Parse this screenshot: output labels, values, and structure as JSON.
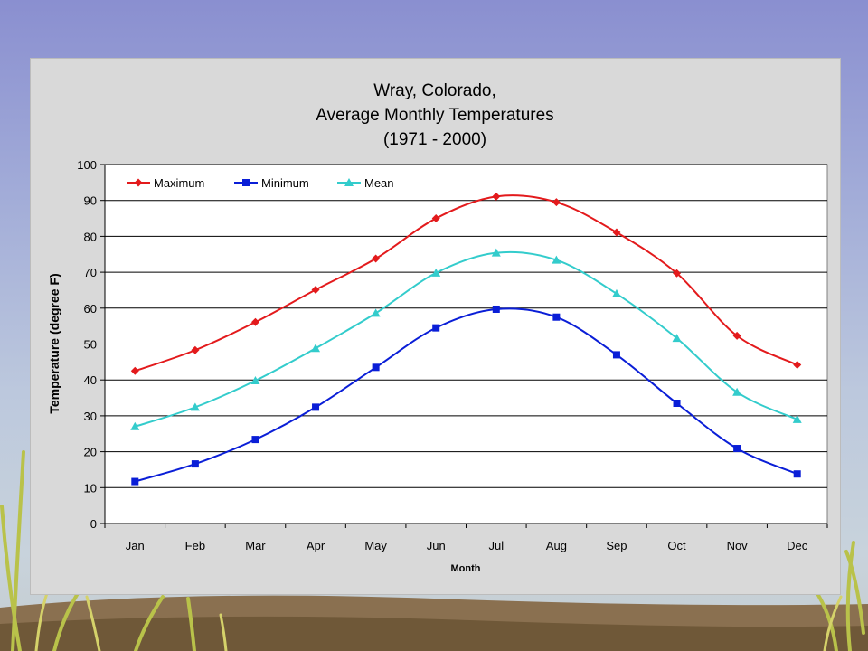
{
  "chart_data": {
    "type": "line",
    "title_lines": [
      "Wray, Colorado,",
      "Average Monthly Temperatures",
      "(1971 - 2000)"
    ],
    "xlabel": "Month",
    "ylabel": "Temperature (degree F)",
    "ylim": [
      0,
      100
    ],
    "yticks": [
      0,
      10,
      20,
      30,
      40,
      50,
      60,
      70,
      80,
      90,
      100
    ],
    "grid": true,
    "legend_position": "top-left",
    "categories": [
      "Jan",
      "Feb",
      "Mar",
      "Apr",
      "May",
      "Jun",
      "Jul",
      "Aug",
      "Sep",
      "Oct",
      "Nov",
      "Dec"
    ],
    "series": [
      {
        "name": "Maximum",
        "color": "#e31a1c",
        "marker": "diamond",
        "values": [
          42.5,
          48.3,
          56.1,
          65.1,
          73.8,
          85.0,
          91.1,
          89.5,
          81.1,
          69.7,
          52.3,
          44.2
        ]
      },
      {
        "name": "Minimum",
        "color": "#0a1ed7",
        "marker": "square",
        "values": [
          11.7,
          16.6,
          23.4,
          32.4,
          43.5,
          54.5,
          59.7,
          57.5,
          47.0,
          33.5,
          20.9,
          13.8
        ]
      },
      {
        "name": "Mean",
        "color": "#33cccc",
        "marker": "triangle",
        "values": [
          27.0,
          32.4,
          39.8,
          48.8,
          58.6,
          69.8,
          75.4,
          73.4,
          64.0,
          51.6,
          36.6,
          29.0
        ]
      }
    ]
  }
}
